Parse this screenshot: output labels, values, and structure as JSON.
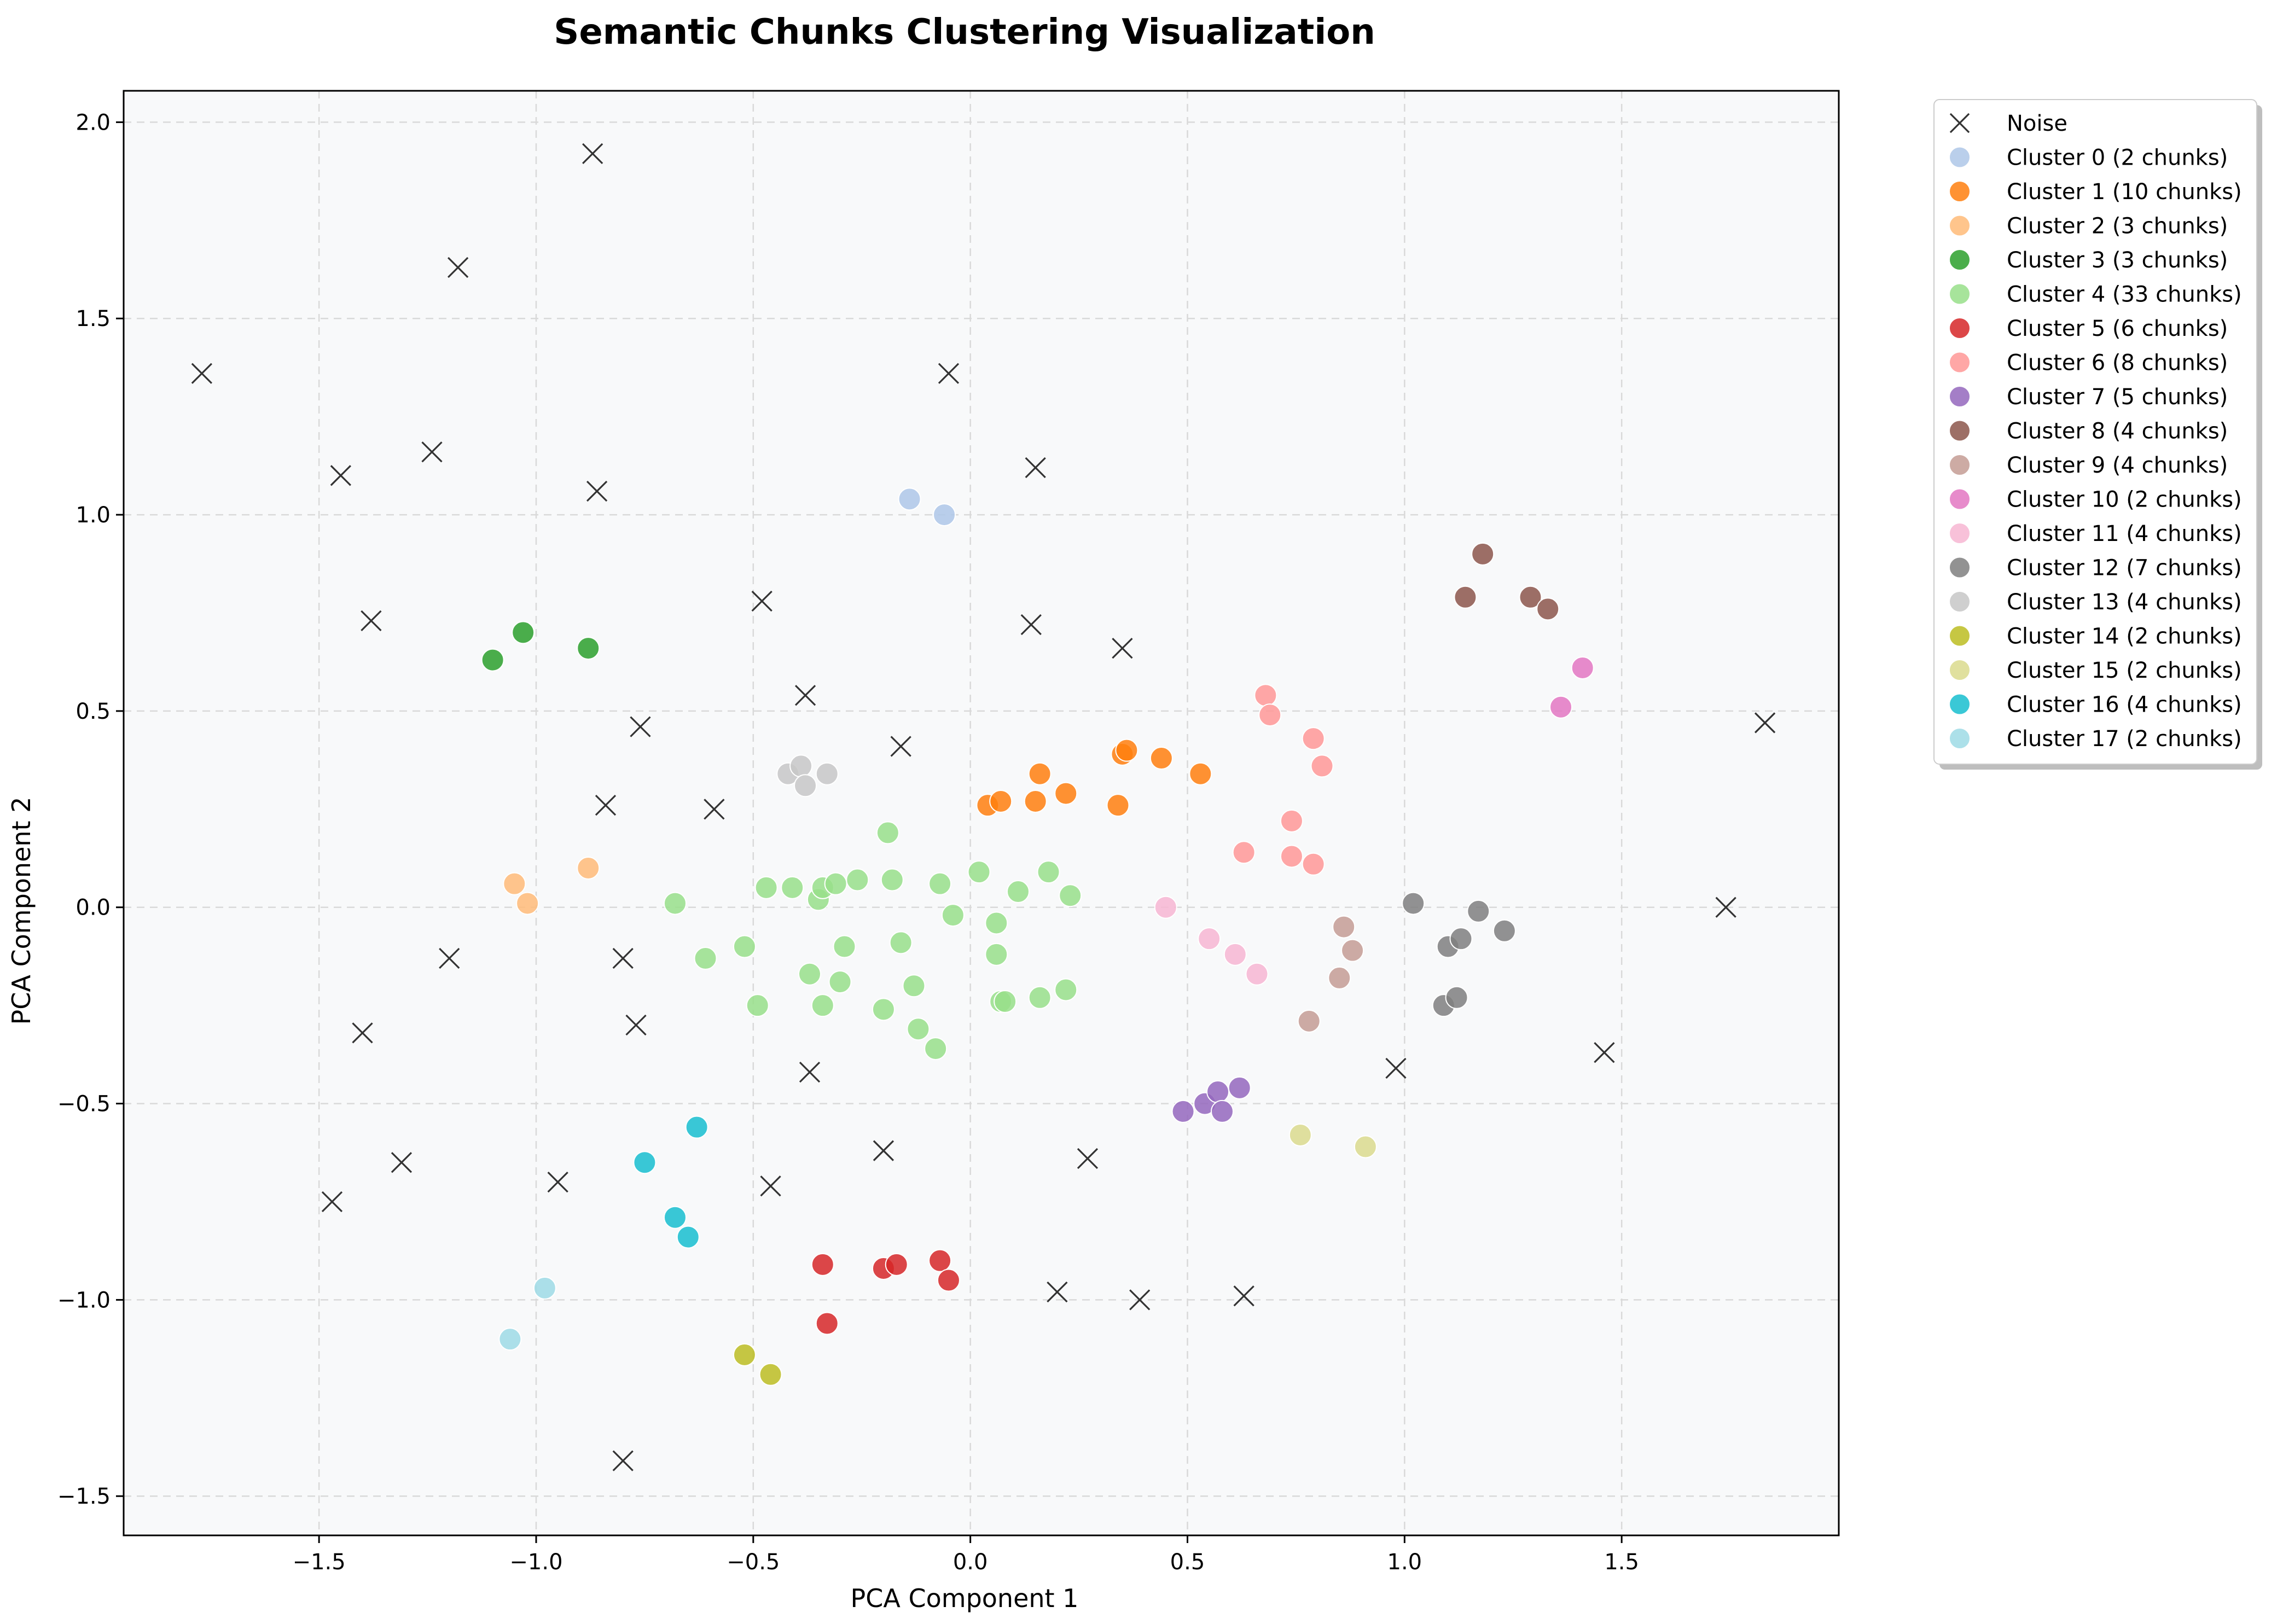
{
  "chart_data": {
    "type": "scatter",
    "title": "Semantic Chunks Clustering Visualization",
    "xlabel": "PCA Component 1",
    "ylabel": "PCA Component 2",
    "xlim": [
      -1.95,
      2.0
    ],
    "ylim": [
      -1.6,
      2.08
    ],
    "xticks": [
      -1.5,
      -1.0,
      -0.5,
      0.0,
      0.5,
      1.0,
      1.5
    ],
    "yticks": [
      -1.5,
      -1.0,
      -0.5,
      0.0,
      0.5,
      1.0,
      1.5,
      2.0
    ],
    "xtick_labels": [
      "−1.5",
      "−1.0",
      "−0.5",
      "0.0",
      "0.5",
      "1.0",
      "1.5"
    ],
    "ytick_labels": [
      "−1.5",
      "−1.0",
      "−0.5",
      "0.0",
      "0.5",
      "1.0",
      "1.5",
      "2.0"
    ],
    "grid": true,
    "legend_position": "outside-top-right",
    "background_color": "#f8f9fa",
    "series": [
      {
        "name": "Noise",
        "marker": "x",
        "color": "#333333",
        "points": [
          [
            -0.87,
            1.92
          ],
          [
            -1.18,
            1.63
          ],
          [
            -1.77,
            1.36
          ],
          [
            -0.05,
            1.36
          ],
          [
            -1.45,
            1.1
          ],
          [
            -1.24,
            1.16
          ],
          [
            -0.86,
            1.06
          ],
          [
            0.15,
            1.12
          ],
          [
            -1.38,
            0.73
          ],
          [
            -0.48,
            0.78
          ],
          [
            0.14,
            0.72
          ],
          [
            0.35,
            0.66
          ],
          [
            -0.38,
            0.54
          ],
          [
            -0.76,
            0.46
          ],
          [
            -0.16,
            0.41
          ],
          [
            -0.84,
            0.26
          ],
          [
            -0.59,
            0.25
          ],
          [
            1.83,
            0.47
          ],
          [
            -1.2,
            -0.13
          ],
          [
            -0.8,
            -0.13
          ],
          [
            1.74,
            0.0
          ],
          [
            -1.4,
            -0.32
          ],
          [
            -0.77,
            -0.3
          ],
          [
            -0.37,
            -0.42
          ],
          [
            0.98,
            -0.41
          ],
          [
            1.46,
            -0.37
          ],
          [
            -1.31,
            -0.65
          ],
          [
            -0.95,
            -0.7
          ],
          [
            -0.46,
            -0.71
          ],
          [
            -0.2,
            -0.62
          ],
          [
            0.27,
            -0.64
          ],
          [
            -1.47,
            -0.75
          ],
          [
            0.2,
            -0.98
          ],
          [
            0.39,
            -1.0
          ],
          [
            0.63,
            -0.99
          ],
          [
            -0.8,
            -1.41
          ]
        ]
      },
      {
        "name": "Cluster 0 (2 chunks)",
        "marker": "o",
        "color": "#aec7e8",
        "points": [
          [
            -0.14,
            1.04
          ],
          [
            -0.06,
            1.0
          ]
        ]
      },
      {
        "name": "Cluster 1 (10 chunks)",
        "marker": "o",
        "color": "#ff7f0e",
        "points": [
          [
            0.04,
            0.26
          ],
          [
            0.07,
            0.27
          ],
          [
            0.15,
            0.27
          ],
          [
            0.16,
            0.34
          ],
          [
            0.22,
            0.29
          ],
          [
            0.34,
            0.26
          ],
          [
            0.35,
            0.39
          ],
          [
            0.36,
            0.4
          ],
          [
            0.44,
            0.38
          ],
          [
            0.53,
            0.34
          ]
        ]
      },
      {
        "name": "Cluster 2 (3 chunks)",
        "marker": "o",
        "color": "#ffbb78",
        "points": [
          [
            -1.05,
            0.06
          ],
          [
            -1.02,
            0.01
          ],
          [
            -0.88,
            0.1
          ]
        ]
      },
      {
        "name": "Cluster 3 (3 chunks)",
        "marker": "o",
        "color": "#2ca02c",
        "points": [
          [
            -1.1,
            0.63
          ],
          [
            -1.03,
            0.7
          ],
          [
            -0.88,
            0.66
          ]
        ]
      },
      {
        "name": "Cluster 4 (33 chunks)",
        "marker": "o",
        "color": "#98df8a",
        "points": [
          [
            -0.68,
            0.01
          ],
          [
            -0.61,
            -0.13
          ],
          [
            -0.52,
            -0.1
          ],
          [
            -0.49,
            -0.25
          ],
          [
            -0.47,
            0.05
          ],
          [
            -0.41,
            0.05
          ],
          [
            -0.37,
            -0.17
          ],
          [
            -0.35,
            0.02
          ],
          [
            -0.34,
            -0.25
          ],
          [
            -0.34,
            0.05
          ],
          [
            -0.31,
            0.06
          ],
          [
            -0.3,
            -0.19
          ],
          [
            -0.29,
            -0.1
          ],
          [
            -0.26,
            0.07
          ],
          [
            -0.2,
            -0.26
          ],
          [
            -0.19,
            0.19
          ],
          [
            -0.18,
            0.07
          ],
          [
            -0.16,
            -0.09
          ],
          [
            -0.13,
            -0.2
          ],
          [
            -0.12,
            -0.31
          ],
          [
            -0.08,
            -0.36
          ],
          [
            -0.07,
            0.06
          ],
          [
            -0.04,
            -0.02
          ],
          [
            0.02,
            0.09
          ],
          [
            0.06,
            -0.04
          ],
          [
            0.06,
            -0.12
          ],
          [
            0.07,
            -0.24
          ],
          [
            0.08,
            -0.24
          ],
          [
            0.11,
            0.04
          ],
          [
            0.16,
            -0.23
          ],
          [
            0.18,
            0.09
          ],
          [
            0.22,
            -0.21
          ],
          [
            0.23,
            0.03
          ]
        ]
      },
      {
        "name": "Cluster 5 (6 chunks)",
        "marker": "o",
        "color": "#d62728",
        "points": [
          [
            -0.34,
            -0.91
          ],
          [
            -0.33,
            -1.06
          ],
          [
            -0.2,
            -0.92
          ],
          [
            -0.17,
            -0.91
          ],
          [
            -0.07,
            -0.9
          ],
          [
            -0.05,
            -0.95
          ]
        ]
      },
      {
        "name": "Cluster 6 (8 chunks)",
        "marker": "o",
        "color": "#ff9896",
        "points": [
          [
            0.63,
            0.14
          ],
          [
            0.68,
            0.54
          ],
          [
            0.69,
            0.49
          ],
          [
            0.74,
            0.22
          ],
          [
            0.74,
            0.13
          ],
          [
            0.79,
            0.11
          ],
          [
            0.79,
            0.43
          ],
          [
            0.81,
            0.36
          ]
        ]
      },
      {
        "name": "Cluster 7 (5 chunks)",
        "marker": "o",
        "color": "#9467bd",
        "points": [
          [
            0.49,
            -0.52
          ],
          [
            0.54,
            -0.5
          ],
          [
            0.57,
            -0.47
          ],
          [
            0.58,
            -0.52
          ],
          [
            0.62,
            -0.46
          ]
        ]
      },
      {
        "name": "Cluster 8 (4 chunks)",
        "marker": "o",
        "color": "#8c564b",
        "points": [
          [
            1.14,
            0.79
          ],
          [
            1.18,
            0.9
          ],
          [
            1.29,
            0.79
          ],
          [
            1.33,
            0.76
          ]
        ]
      },
      {
        "name": "Cluster 9 (4 chunks)",
        "marker": "o",
        "color": "#c49c94",
        "points": [
          [
            0.78,
            -0.29
          ],
          [
            0.85,
            -0.18
          ],
          [
            0.86,
            -0.05
          ],
          [
            0.88,
            -0.11
          ]
        ]
      },
      {
        "name": "Cluster 10 (2 chunks)",
        "marker": "o",
        "color": "#e377c2",
        "points": [
          [
            1.36,
            0.51
          ],
          [
            1.41,
            0.61
          ]
        ]
      },
      {
        "name": "Cluster 11 (4 chunks)",
        "marker": "o",
        "color": "#f7b6d2",
        "points": [
          [
            0.45,
            0.0
          ],
          [
            0.55,
            -0.08
          ],
          [
            0.61,
            -0.12
          ],
          [
            0.66,
            -0.17
          ]
        ]
      },
      {
        "name": "Cluster 12 (7 chunks)",
        "marker": "o",
        "color": "#7f7f7f",
        "points": [
          [
            1.02,
            0.01
          ],
          [
            1.09,
            -0.25
          ],
          [
            1.1,
            -0.1
          ],
          [
            1.12,
            -0.23
          ],
          [
            1.13,
            -0.08
          ],
          [
            1.17,
            -0.01
          ],
          [
            1.23,
            -0.06
          ]
        ]
      },
      {
        "name": "Cluster 13 (4 chunks)",
        "marker": "o",
        "color": "#c7c7c7",
        "points": [
          [
            -0.42,
            0.34
          ],
          [
            -0.39,
            0.36
          ],
          [
            -0.38,
            0.31
          ],
          [
            -0.33,
            0.34
          ]
        ]
      },
      {
        "name": "Cluster 14 (2 chunks)",
        "marker": "o",
        "color": "#bcbd22",
        "points": [
          [
            -0.52,
            -1.14
          ],
          [
            -0.46,
            -1.19
          ]
        ]
      },
      {
        "name": "Cluster 15 (2 chunks)",
        "marker": "o",
        "color": "#dbdb8d",
        "points": [
          [
            0.76,
            -0.58
          ],
          [
            0.91,
            -0.61
          ]
        ]
      },
      {
        "name": "Cluster 16 (4 chunks)",
        "marker": "o",
        "color": "#17becf",
        "points": [
          [
            -0.75,
            -0.65
          ],
          [
            -0.68,
            -0.79
          ],
          [
            -0.65,
            -0.84
          ],
          [
            -0.63,
            -0.56
          ]
        ]
      },
      {
        "name": "Cluster 17 (2 chunks)",
        "marker": "o",
        "color": "#9edae5",
        "points": [
          [
            -1.06,
            -1.1
          ],
          [
            -0.98,
            -0.97
          ]
        ]
      }
    ]
  }
}
